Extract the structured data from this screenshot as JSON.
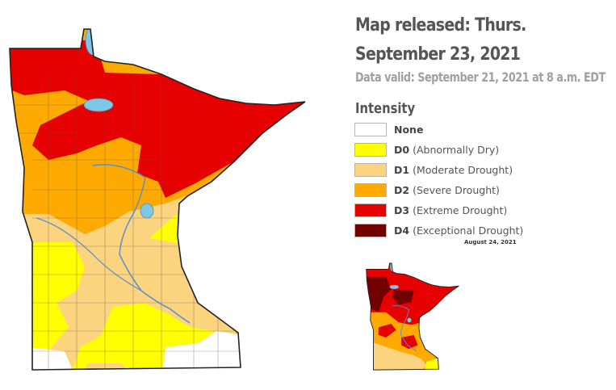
{
  "header": {
    "title": "Map released: Thurs. September 23, 2021",
    "valid": "Data valid: September 21, 2021 at 8 a.m. EDT"
  },
  "legend": {
    "title": "Intensity",
    "items": [
      {
        "code": "",
        "label": "None",
        "color": "#ffffff"
      },
      {
        "code": "D0",
        "label": "(Abnormally Dry)",
        "color": "#ffff00"
      },
      {
        "code": "D1",
        "label": "(Moderate Drought)",
        "color": "#fcd37f"
      },
      {
        "code": "D2",
        "label": "(Severe Drought)",
        "color": "#ffaa00"
      },
      {
        "code": "D3",
        "label": "(Extreme Drought)",
        "color": "#e60000"
      },
      {
        "code": "D4",
        "label": "(Exceptional Drought)",
        "color": "#730000"
      }
    ]
  },
  "thumbnail": {
    "date": "August 24, 2021"
  },
  "colors": {
    "water": "#7ec8e3",
    "border": "#333333",
    "county_lines": "#666666"
  }
}
